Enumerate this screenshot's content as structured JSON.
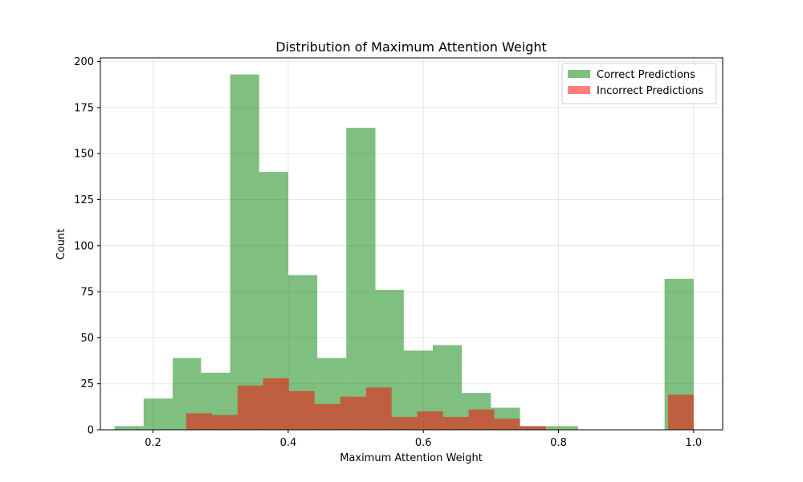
{
  "chart_data": {
    "type": "bar",
    "title": "Distribution of Maximum Attention Weight",
    "xlabel": "Maximum Attention Weight",
    "ylabel": "Count",
    "xlim": [
      0.122,
      1.043
    ],
    "ylim": [
      0,
      202
    ],
    "xticks": [
      0.2,
      0.4,
      0.6,
      0.8,
      1.0
    ],
    "xtick_labels": [
      "0.2",
      "0.4",
      "0.6",
      "0.8",
      "1.0"
    ],
    "yticks": [
      0,
      25,
      50,
      75,
      100,
      125,
      150,
      175,
      200
    ],
    "ytick_labels": [
      "0",
      "25",
      "50",
      "75",
      "100",
      "125",
      "150",
      "175",
      "200"
    ],
    "grid": true,
    "legend_position": "top-right",
    "series": [
      {
        "name": "Correct Predictions",
        "color": "#008000",
        "opacity": 0.5,
        "bin_edges": [
          0.143,
          0.186,
          0.229,
          0.271,
          0.314,
          0.357,
          0.4,
          0.443,
          0.486,
          0.529,
          0.571,
          0.614,
          0.657,
          0.7,
          0.743,
          0.786,
          0.829,
          0.871,
          0.914,
          0.957,
          1.0
        ],
        "values": [
          2,
          17,
          39,
          31,
          193,
          140,
          84,
          39,
          164,
          76,
          43,
          46,
          20,
          12,
          2,
          2,
          0,
          0,
          0,
          82
        ]
      },
      {
        "name": "Incorrect Predictions",
        "color": "#ff0000",
        "opacity": 0.5,
        "bin_edges": [
          0.249,
          0.287,
          0.325,
          0.363,
          0.401,
          0.439,
          0.477,
          0.515,
          0.553,
          0.591,
          0.629,
          0.667,
          0.705,
          0.743,
          0.781,
          0.819,
          0.857,
          0.895,
          0.933,
          0.962,
          1.0
        ],
        "values": [
          9,
          8,
          24,
          28,
          21,
          14,
          18,
          23,
          7,
          10,
          7,
          11,
          6,
          2,
          0,
          0,
          0,
          0,
          0,
          19
        ]
      }
    ]
  }
}
